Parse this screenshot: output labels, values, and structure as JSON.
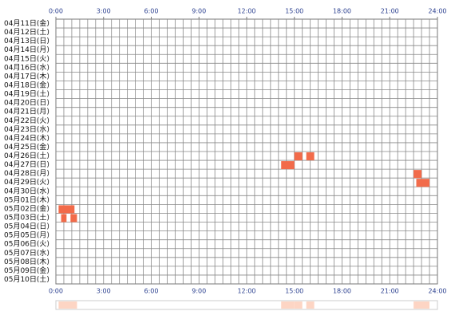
{
  "chart_data": {
    "type": "timeline",
    "categories": [
      "04月11日(金)",
      "04月12日(土)",
      "04月13日(日)",
      "04月14日(月)",
      "04月15日(火)",
      "04月16日(水)",
      "04月17日(木)",
      "04月18日(金)",
      "04月19日(土)",
      "04月20日(日)",
      "04月21日(月)",
      "04月22日(火)",
      "04月23日(水)",
      "04月24日(木)",
      "04月25日(金)",
      "04月26日(土)",
      "04月27日(日)",
      "04月28日(月)",
      "04月29日(火)",
      "04月30日(水)",
      "05月01日(木)",
      "05月02日(金)",
      "05月03日(土)",
      "05月04日(日)",
      "05月05日(月)",
      "05月06日(火)",
      "05月07日(水)",
      "05月08日(木)",
      "05月09日(金)",
      "05月10日(土)"
    ],
    "xlim": [
      0,
      24
    ],
    "xticks": [
      {
        "value": 0,
        "label": "0:00"
      },
      {
        "value": 3,
        "label": "3:00"
      },
      {
        "value": 6,
        "label": "6:00"
      },
      {
        "value": 9,
        "label": "9:00"
      },
      {
        "value": 12,
        "label": "12:00"
      },
      {
        "value": 15,
        "label": "15:00"
      },
      {
        "value": 18,
        "label": "18:00"
      },
      {
        "value": 21,
        "label": "21:00"
      },
      {
        "value": 24,
        "label": "24:00"
      }
    ],
    "grid_step": 0.5,
    "color": "#f26b4a",
    "overview_color": "#fdd5c4",
    "events": [
      {
        "category": "04月26日(土)",
        "start": 15.0,
        "end": 15.5
      },
      {
        "category": "04月26日(土)",
        "start": 15.75,
        "end": 16.25
      },
      {
        "category": "04月27日(日)",
        "start": 14.17,
        "end": 15.0
      },
      {
        "category": "04月28日(月)",
        "start": 22.5,
        "end": 23.0
      },
      {
        "category": "04月29日(火)",
        "start": 22.67,
        "end": 23.5
      },
      {
        "category": "05月02日(金)",
        "start": 0.17,
        "end": 1.17
      },
      {
        "category": "05月03日(土)",
        "start": 0.33,
        "end": 0.67
      },
      {
        "category": "05月03日(土)",
        "start": 0.92,
        "end": 1.33
      }
    ]
  }
}
